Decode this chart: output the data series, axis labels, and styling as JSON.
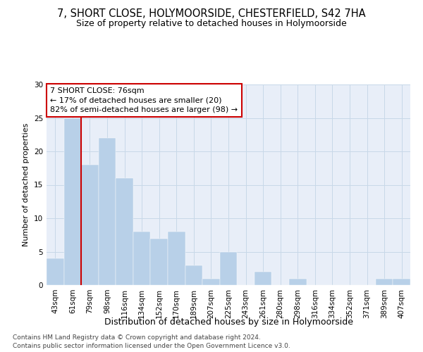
{
  "title": "7, SHORT CLOSE, HOLYMOORSIDE, CHESTERFIELD, S42 7HA",
  "subtitle": "Size of property relative to detached houses in Holymoorside",
  "xlabel": "Distribution of detached houses by size in Holymoorside",
  "ylabel": "Number of detached properties",
  "footer_line1": "Contains HM Land Registry data © Crown copyright and database right 2024.",
  "footer_line2": "Contains public sector information licensed under the Open Government Licence v3.0.",
  "categories": [
    "43sqm",
    "61sqm",
    "79sqm",
    "98sqm",
    "116sqm",
    "134sqm",
    "152sqm",
    "170sqm",
    "189sqm",
    "207sqm",
    "225sqm",
    "243sqm",
    "261sqm",
    "280sqm",
    "298sqm",
    "316sqm",
    "334sqm",
    "352sqm",
    "371sqm",
    "389sqm",
    "407sqm"
  ],
  "values": [
    4,
    25,
    18,
    22,
    16,
    8,
    7,
    8,
    3,
    1,
    5,
    0,
    2,
    0,
    1,
    0,
    0,
    0,
    0,
    1,
    1
  ],
  "bar_color": "#b8d0e8",
  "property_line_index": 2,
  "property_line_color": "#cc0000",
  "annotation_line1": "7 SHORT CLOSE: 76sqm",
  "annotation_line2": "← 17% of detached houses are smaller (20)",
  "annotation_line3": "82% of semi-detached houses are larger (98) →",
  "annotation_box_color": "#cc0000",
  "ylim": [
    0,
    30
  ],
  "yticks": [
    0,
    5,
    10,
    15,
    20,
    25,
    30
  ],
  "grid_color": "#c8d8e8",
  "bg_color": "#e8eef8",
  "title_fontsize": 10.5,
  "subtitle_fontsize": 9,
  "ylabel_fontsize": 8,
  "xlabel_fontsize": 9,
  "tick_fontsize": 7.5,
  "annotation_fontsize": 8,
  "footer_fontsize": 6.5
}
